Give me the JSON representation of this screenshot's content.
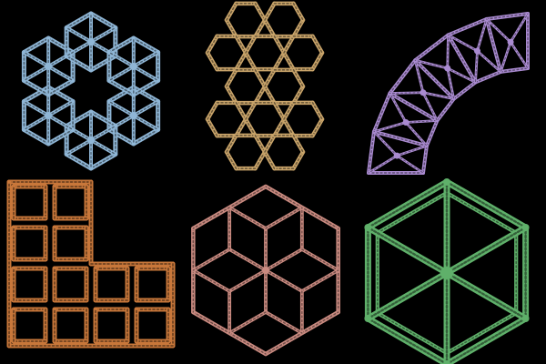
{
  "panels": [
    {
      "name": "star-hex-lattice",
      "color": "#8fb6d6"
    },
    {
      "name": "hexagon-column",
      "color": "#c9a46a"
    },
    {
      "name": "curved-triangle-band",
      "color": "#a98ad0"
    },
    {
      "name": "l-shape-square-grid",
      "color": "#c8773a"
    },
    {
      "name": "rhombus-star-hexagon",
      "color": "#c98a80"
    },
    {
      "name": "spoked-hexagon",
      "color": "#5fb06a"
    }
  ]
}
